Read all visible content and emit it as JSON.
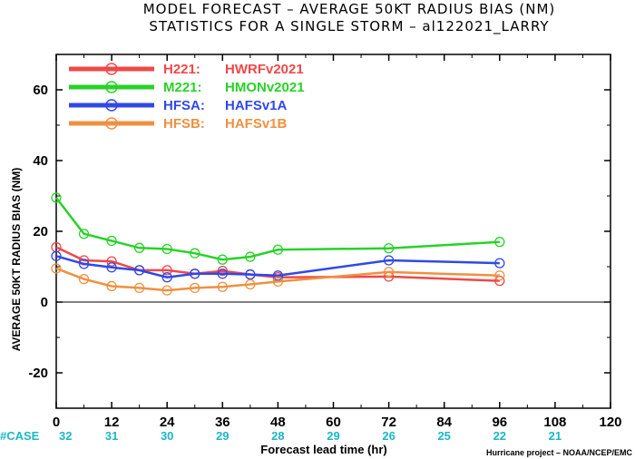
{
  "title_line1": "MODEL FORECAST – AVERAGE 50KT RADIUS BIAS (NM)",
  "title_line2": "STATISTICS FOR A SINGLE STORM – al122021_LARRY",
  "ylabel": "AVERAGE 50KT RADIUS BIAS (NM)",
  "xlabel": "Forecast lead time (hr)",
  "case_label": "#CASE",
  "credit": "Hurricane project – NOAA/NCEP/EMC",
  "chart_data": {
    "type": "line",
    "xlim": [
      0,
      120
    ],
    "ylim": [
      -30,
      70
    ],
    "xticks": [
      0,
      12,
      24,
      36,
      48,
      60,
      72,
      84,
      96,
      108,
      120
    ],
    "yticks": [
      -20,
      0,
      20,
      40,
      60
    ],
    "zero_line": 0,
    "legend_position": "top-left",
    "case_counts": [
      {
        "x": 0,
        "label": "32"
      },
      {
        "x": 12,
        "label": "31"
      },
      {
        "x": 24,
        "label": "30"
      },
      {
        "x": 36,
        "label": "29"
      },
      {
        "x": 48,
        "label": "28"
      },
      {
        "x": 60,
        "label": "29"
      },
      {
        "x": 72,
        "label": "26"
      },
      {
        "x": 84,
        "label": "25"
      },
      {
        "x": 96,
        "label": "22"
      },
      {
        "x": 108,
        "label": "21"
      }
    ],
    "series": [
      {
        "name": "H221:",
        "model": "HWRFv2021",
        "color": "#f04848",
        "x": [
          0,
          6,
          12,
          18,
          24,
          30,
          36,
          42,
          48,
          72,
          96
        ],
        "y": [
          15.5,
          11.8,
          11.5,
          9.0,
          9.0,
          8.0,
          8.8,
          7.8,
          7.0,
          7.2,
          6.0
        ]
      },
      {
        "name": "M221:",
        "model": "HMONv2021",
        "color": "#28d228",
        "x": [
          0,
          6,
          12,
          18,
          24,
          30,
          36,
          42,
          48,
          72,
          96
        ],
        "y": [
          29.5,
          19.3,
          17.3,
          15.3,
          15.0,
          13.8,
          12.0,
          12.8,
          14.8,
          15.2,
          17.0
        ]
      },
      {
        "name": "HFSA:",
        "model": "HAFSv1A",
        "color": "#3048e8",
        "x": [
          0,
          6,
          12,
          18,
          24,
          30,
          36,
          42,
          48,
          72,
          96
        ],
        "y": [
          13.0,
          10.8,
          9.8,
          9.0,
          7.0,
          8.0,
          8.0,
          7.8,
          7.5,
          11.8,
          11.0
        ]
      },
      {
        "name": "HFSB:",
        "model": "HAFSv1B",
        "color": "#f09040",
        "x": [
          0,
          6,
          12,
          18,
          24,
          30,
          36,
          42,
          48,
          72,
          96
        ],
        "y": [
          9.5,
          6.5,
          4.5,
          4.0,
          3.3,
          4.0,
          4.3,
          5.0,
          5.8,
          8.5,
          7.5
        ]
      }
    ]
  }
}
